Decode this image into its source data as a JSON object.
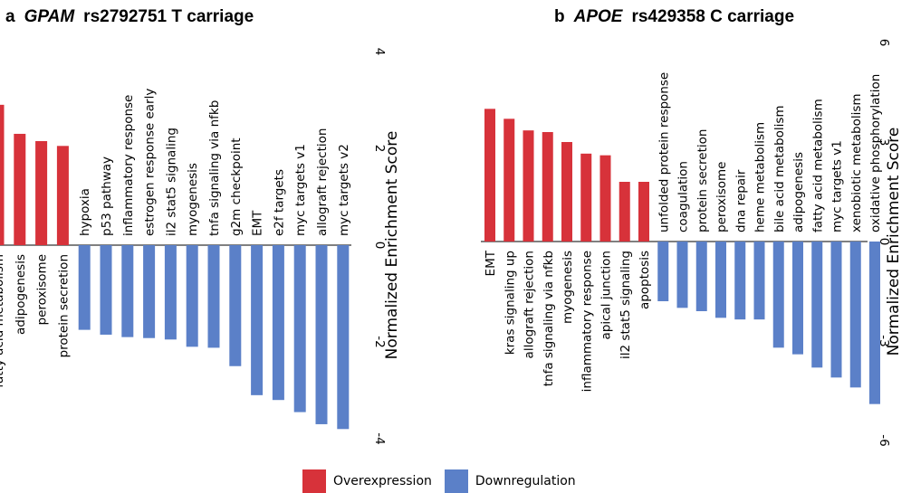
{
  "colors": {
    "over": "#D7323A",
    "down": "#5B80C8"
  },
  "legend": {
    "over_label": "Overexpression",
    "down_label": "Downregulation"
  },
  "chart_data": [
    {
      "type": "bar",
      "panel_letter": "a",
      "gene": "GPAM",
      "title_rest": "rs2792751 T carriage",
      "ylabel": "Normalized Enrichment Score",
      "ylim": [
        -4,
        4
      ],
      "yticks": [
        "4",
        "2",
        "0",
        "-2",
        "-4"
      ],
      "series": [
        {
          "name": "Overexpression",
          "categories": [
            "fatty acid metabolism",
            "adipogenesis",
            "peroxisome",
            "protein secretion"
          ],
          "values": [
            2.9,
            2.3,
            2.15,
            2.05
          ]
        },
        {
          "name": "Downregulation",
          "categories": [
            "hypoxia",
            "p53 pathway",
            "inflammatory response",
            "estrogen response early",
            "il2 stat5 signaling",
            "myogenesis",
            "tnfa signaling via nfkb",
            "g2m checkpoint",
            "EMT",
            "e2f targets",
            "myc targets v1",
            "allograft rejection",
            "myc targets v2"
          ],
          "values": [
            -1.75,
            -1.85,
            -1.9,
            -1.92,
            -1.95,
            -2.1,
            -2.12,
            -2.5,
            -3.1,
            -3.2,
            -3.45,
            -3.7,
            -3.8
          ]
        }
      ]
    },
    {
      "type": "bar",
      "panel_letter": "b",
      "gene": "APOE",
      "title_rest": "rs429358 C carriage",
      "ylabel": "Normalized Enrichment Score",
      "ylim": [
        -6,
        6
      ],
      "yticks": [
        "6",
        "3",
        "0",
        "-3",
        "-6"
      ],
      "series": [
        {
          "name": "Overexpression",
          "categories": [
            "EMT",
            "kras signaling up",
            "allograft rejection",
            "tnfa signaling via nfkb",
            "myogenesis",
            "inflammatory response",
            "apical junction",
            "il2 stat5 signaling",
            "apoptosis"
          ],
          "values": [
            4.0,
            3.7,
            3.35,
            3.3,
            3.0,
            2.65,
            2.6,
            1.8,
            1.8
          ]
        },
        {
          "name": "Downregulation",
          "categories": [
            "unfolded protein response",
            "coagulation",
            "protein secretion",
            "peroxisome",
            "dna repair",
            "heme metabolism",
            "bile acid metabolism",
            "adipogenesis",
            "fatty acid metabolism",
            "myc targets v1",
            "xenobiotic metabolism",
            "oxidative phosphorylation"
          ],
          "values": [
            -1.8,
            -2.0,
            -2.1,
            -2.3,
            -2.35,
            -2.35,
            -3.2,
            -3.4,
            -3.8,
            -4.1,
            -4.4,
            -4.9
          ]
        }
      ]
    }
  ]
}
